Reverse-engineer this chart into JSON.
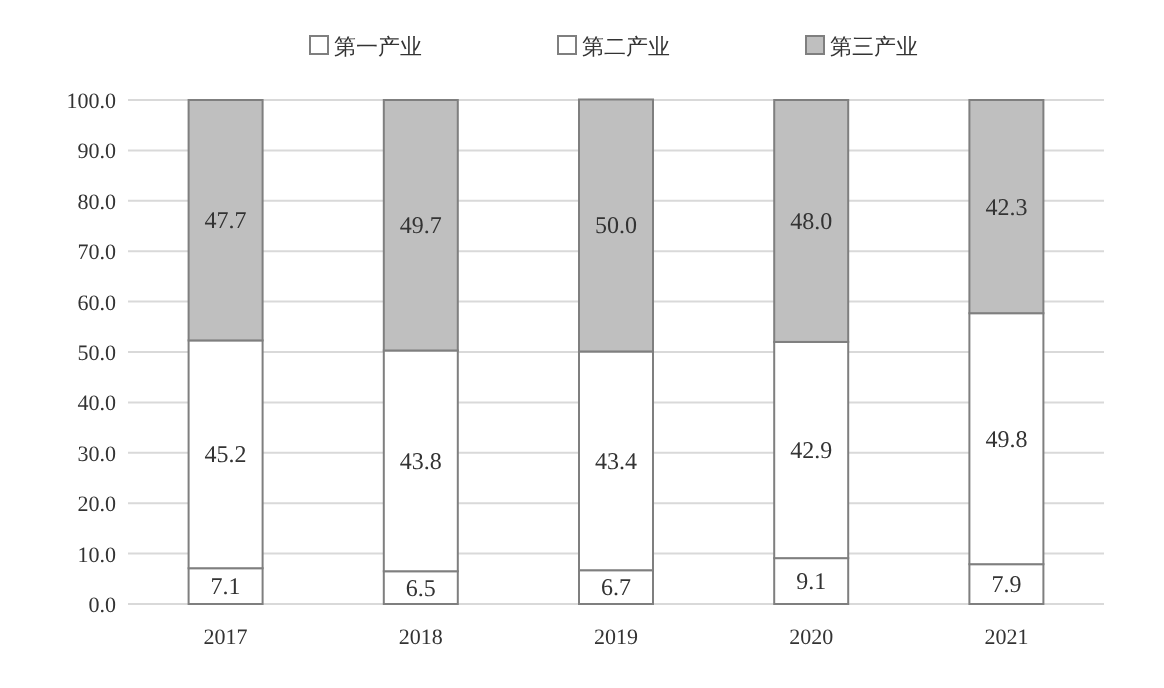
{
  "chart_data": {
    "type": "bar",
    "stacked": true,
    "categories": [
      "2017",
      "2018",
      "2019",
      "2020",
      "2021"
    ],
    "series": [
      {
        "name": "第一产业",
        "color": "#ffffff",
        "values": [
          7.1,
          6.5,
          6.7,
          9.1,
          7.9
        ],
        "value_labels": [
          "7.1",
          "6.5",
          "6.7",
          "9.1",
          "7.9"
        ]
      },
      {
        "name": "第二产业",
        "color": "#ffffff",
        "values": [
          45.2,
          43.8,
          43.4,
          42.9,
          49.8
        ],
        "value_labels": [
          "45.2",
          "43.8",
          "43.4",
          "42.9",
          "49.8"
        ]
      },
      {
        "name": "第三产业",
        "color": "#bfbfbf",
        "values": [
          47.7,
          49.7,
          50.0,
          48.0,
          42.3
        ],
        "value_labels": [
          "47.7",
          "49.7",
          "50.0",
          "48.0",
          "42.3"
        ]
      }
    ],
    "ylim": [
      0,
      100
    ],
    "yticks": [
      {
        "value": 0,
        "label": "0.0"
      },
      {
        "value": 10,
        "label": "10.0"
      },
      {
        "value": 20,
        "label": "20.0"
      },
      {
        "value": 30,
        "label": "30.0"
      },
      {
        "value": 40,
        "label": "40.0"
      },
      {
        "value": 50,
        "label": "50.0"
      },
      {
        "value": 60,
        "label": "60.0"
      },
      {
        "value": 70,
        "label": "70.0"
      },
      {
        "value": 80,
        "label": "80.0"
      },
      {
        "value": 90,
        "label": "90.0"
      },
      {
        "value": 100,
        "label": "100.0"
      }
    ],
    "grid": "y",
    "legend": "top"
  }
}
